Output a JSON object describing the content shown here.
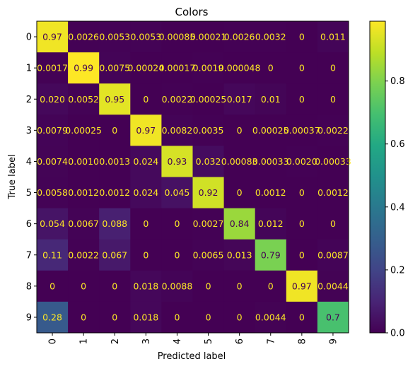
{
  "chart_data": {
    "type": "heatmap",
    "title": "Colors",
    "xlabel": "Predicted label",
    "ylabel": "True label",
    "x_categories": [
      "0",
      "1",
      "2",
      "3",
      "4",
      "5",
      "6",
      "7",
      "8",
      "9"
    ],
    "y_categories": [
      "0",
      "1",
      "2",
      "3",
      "4",
      "5",
      "6",
      "7",
      "8",
      "9"
    ],
    "values": [
      [
        0.97,
        0.0026,
        0.0053,
        0.0053,
        0.00085,
        0.00021,
        0.0026,
        0.0032,
        0,
        0.011
      ],
      [
        0.0017,
        0.99,
        0.0075,
        0.00024,
        0.00017,
        0.0019,
        4.8e-05,
        0,
        0,
        0
      ],
      [
        0.02,
        0.0052,
        0.95,
        0,
        0.0022,
        0.00025,
        0.017,
        0.01,
        0,
        0
      ],
      [
        0.0079,
        0.00025,
        0,
        0.97,
        0.0082,
        0.0035,
        0,
        0.00025,
        0.00037,
        0.0022
      ],
      [
        0.0074,
        0.001,
        0.0013,
        0.024,
        0.93,
        0.032,
        0.00083,
        0.00033,
        0.002,
        0.00033
      ],
      [
        0.0058,
        0.0012,
        0.0012,
        0.024,
        0.045,
        0.92,
        0,
        0.0012,
        0,
        0.0012
      ],
      [
        0.054,
        0.0067,
        0.088,
        0,
        0,
        0.0027,
        0.84,
        0.012,
        0,
        0
      ],
      [
        0.11,
        0.0022,
        0.067,
        0,
        0,
        0.0065,
        0.013,
        0.79,
        0,
        0.0087
      ],
      [
        0,
        0,
        0,
        0.018,
        0.0088,
        0,
        0,
        0,
        0.97,
        0.0044
      ],
      [
        0.28,
        0,
        0,
        0.018,
        0,
        0,
        0,
        0.0044,
        0,
        0.7
      ]
    ],
    "labels": [
      [
        "0.97",
        "0.0026",
        "0.0053",
        "0.0053",
        "0.00085",
        "0.00021",
        "0.0026",
        "0.0032",
        "0",
        "0.011"
      ],
      [
        "0.0017",
        "0.99",
        "0.0075",
        "0.00024",
        "0.00017",
        "0.0019",
        "0.000048",
        "0",
        "0",
        "0"
      ],
      [
        "0.020",
        "0.0052",
        "0.95",
        "0",
        "0.0022",
        "0.00025",
        "0.017",
        "0.01",
        "0",
        "0"
      ],
      [
        "0.0079",
        "0.00025",
        "0",
        "0.97",
        "0.0082",
        "0.0035",
        "0",
        "0.00025",
        "0.00037",
        "0.0022"
      ],
      [
        "0.0074",
        "0.0010",
        "0.0013",
        "0.024",
        "0.93",
        "0.032",
        "0.00083",
        "0.00033",
        "0.0020",
        "0.00033"
      ],
      [
        "0.0058",
        "0.0012",
        "0.0012",
        "0.024",
        "0.045",
        "0.92",
        "0",
        "0.0012",
        "0",
        "0.0012"
      ],
      [
        "0.054",
        "0.0067",
        "0.088",
        "0",
        "0",
        "0.0027",
        "0.84",
        "0.012",
        "0",
        "0"
      ],
      [
        "0.11",
        "0.0022",
        "0.067",
        "0",
        "0",
        "0.0065",
        "0.013",
        "0.79",
        "0",
        "0.0087"
      ],
      [
        "0",
        "0",
        "0",
        "0.018",
        "0.0088",
        "0",
        "0",
        "0",
        "0.97",
        "0.0044"
      ],
      [
        "0.28",
        "0",
        "0",
        "0.018",
        "0",
        "0",
        "0",
        "0.0044",
        "0",
        "0.7"
      ]
    ],
    "colormap": "viridis",
    "color_range": [
      0,
      0.99
    ],
    "colorbar_ticks": [
      0.0,
      0.2,
      0.4,
      0.6,
      0.8
    ],
    "colorbar_tick_labels": [
      "0.0",
      "0.2",
      "0.4",
      "0.6",
      "0.8"
    ],
    "text_color_dark_cells": "#fde725",
    "text_color_bright_cells": "#440154",
    "grid": false
  }
}
